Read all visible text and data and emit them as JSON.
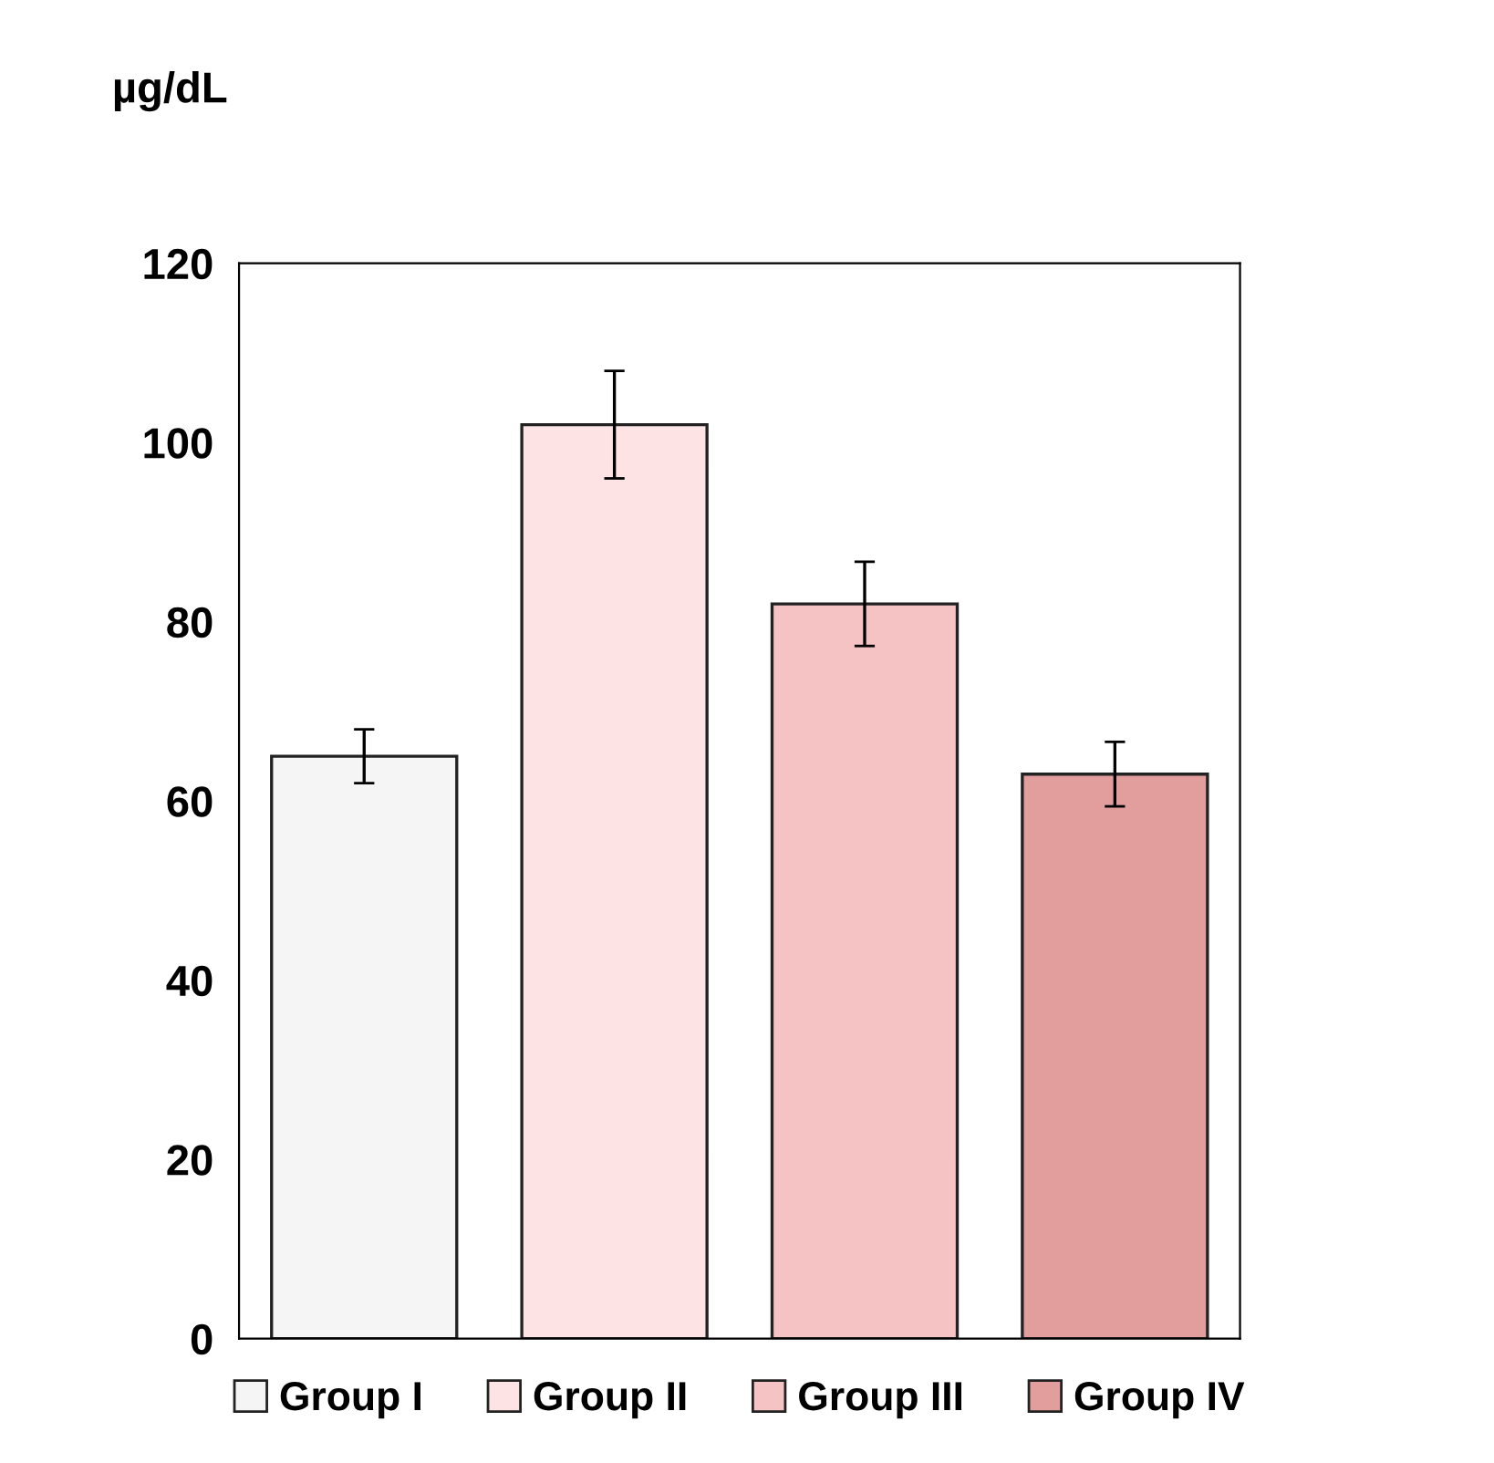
{
  "chart_data": {
    "type": "bar",
    "ylabel": "µg/dL",
    "categories": [
      null,
      null,
      null,
      null
    ],
    "series": [
      {
        "name": "Group I",
        "color": "#f5f5f5",
        "values": [
          65,
          null,
          null,
          null
        ],
        "errors": [
          3,
          null,
          null,
          null
        ]
      },
      {
        "name": "Group II",
        "color": "#fde3e3",
        "values": [
          null,
          102,
          null,
          null
        ],
        "errors": [
          null,
          6,
          null,
          null
        ]
      },
      {
        "name": "Group III",
        "color": "#f5c3c3",
        "values": [
          null,
          null,
          82,
          null
        ],
        "errors": [
          null,
          null,
          4.7,
          null
        ]
      },
      {
        "name": "Group IV",
        "color": "#e29d9d",
        "values": [
          null,
          null,
          null,
          63
        ],
        "errors": [
          null,
          null,
          null,
          3.6
        ]
      }
    ],
    "ylim": [
      0,
      120
    ],
    "yticks": [
      0,
      20,
      40,
      60,
      80,
      100,
      120
    ],
    "grid": false,
    "legend": "bottom"
  }
}
